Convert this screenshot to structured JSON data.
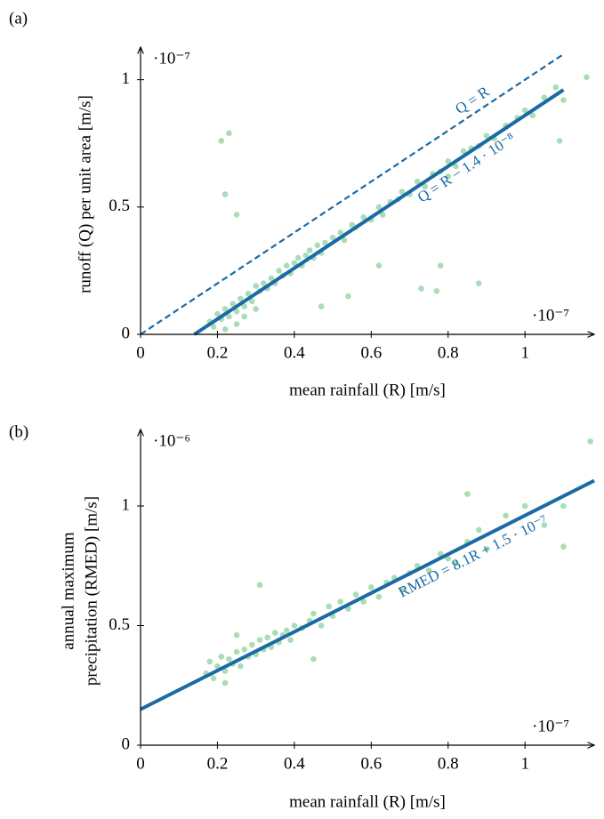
{
  "chart_data": [
    {
      "type": "scatter",
      "panel": "(a)",
      "xlabel": "mean rainfall (R) [m/s]",
      "ylabel": [
        "runoff (Q) per unit area [m/s]"
      ],
      "x_scale_label": "·10⁻⁷",
      "y_scale_label": "·10⁻⁷",
      "xlim": [
        0,
        1.18
      ],
      "ylim": [
        0,
        1.1
      ],
      "xticks": [
        0,
        0.2,
        0.4,
        0.6,
        0.8,
        1
      ],
      "yticks": [
        0,
        0.5,
        1
      ],
      "color": "#a8ddb5",
      "x": [
        0.18,
        0.19,
        0.2,
        0.21,
        0.22,
        0.22,
        0.23,
        0.24,
        0.25,
        0.25,
        0.26,
        0.27,
        0.27,
        0.28,
        0.29,
        0.3,
        0.3,
        0.31,
        0.32,
        0.33,
        0.34,
        0.35,
        0.36,
        0.37,
        0.38,
        0.39,
        0.4,
        0.41,
        0.42,
        0.43,
        0.44,
        0.45,
        0.46,
        0.47,
        0.48,
        0.5,
        0.52,
        0.53,
        0.55,
        0.56,
        0.58,
        0.6,
        0.62,
        0.63,
        0.65,
        0.67,
        0.68,
        0.7,
        0.72,
        0.74,
        0.76,
        0.78,
        0.8,
        0.82,
        0.84,
        0.86,
        0.88,
        0.9,
        0.92,
        0.95,
        0.98,
        1.0,
        1.02,
        1.05,
        1.08,
        1.1,
        0.23,
        0.21,
        0.22,
        0.25,
        0.77,
        0.88,
        0.73,
        0.78,
        0.62,
        1.09,
        1.16,
        0.54,
        0.47,
        0.8
      ],
      "y": [
        0.05,
        0.03,
        0.08,
        0.06,
        0.1,
        0.02,
        0.07,
        0.12,
        0.09,
        0.04,
        0.14,
        0.11,
        0.07,
        0.16,
        0.13,
        0.19,
        0.1,
        0.17,
        0.2,
        0.18,
        0.22,
        0.2,
        0.25,
        0.23,
        0.27,
        0.24,
        0.28,
        0.3,
        0.27,
        0.31,
        0.33,
        0.3,
        0.35,
        0.32,
        0.36,
        0.38,
        0.4,
        0.37,
        0.43,
        0.42,
        0.46,
        0.45,
        0.5,
        0.47,
        0.52,
        0.53,
        0.56,
        0.55,
        0.6,
        0.58,
        0.63,
        0.64,
        0.68,
        0.66,
        0.72,
        0.73,
        0.74,
        0.78,
        0.77,
        0.82,
        0.85,
        0.88,
        0.86,
        0.93,
        0.97,
        0.92,
        0.79,
        0.76,
        0.55,
        0.47,
        0.17,
        0.2,
        0.18,
        0.27,
        0.27,
        0.76,
        1.01,
        0.15,
        0.11,
        0.62
      ],
      "lines": [
        {
          "label": "Q = R",
          "x": [
            0,
            1.1
          ],
          "y": [
            0,
            1.1
          ],
          "dashed": true,
          "color": "#1a6aa6"
        },
        {
          "label": "Q = R − 1.4 · 10⁻⁸",
          "x": [
            0.14,
            1.1
          ],
          "y": [
            0,
            0.96
          ],
          "dashed": false,
          "color": "#1a6aa6"
        }
      ]
    },
    {
      "type": "scatter",
      "panel": "(b)",
      "xlabel": "mean rainfall (R) [m/s]",
      "ylabel": [
        "annual maximum",
        "precipitation (RMED) [m/s]"
      ],
      "x_scale_label": "·10⁻⁷",
      "y_scale_label": "·10⁻⁶",
      "xlim": [
        0,
        1.18
      ],
      "ylim": [
        0,
        1.29
      ],
      "xticks": [
        0,
        0.2,
        0.4,
        0.6,
        0.8,
        1
      ],
      "yticks": [
        0,
        0.5,
        1
      ],
      "color": "#a8ddb5",
      "x": [
        0.17,
        0.18,
        0.19,
        0.2,
        0.21,
        0.22,
        0.23,
        0.24,
        0.25,
        0.26,
        0.27,
        0.28,
        0.29,
        0.3,
        0.31,
        0.32,
        0.33,
        0.34,
        0.35,
        0.36,
        0.37,
        0.38,
        0.39,
        0.4,
        0.42,
        0.44,
        0.45,
        0.47,
        0.49,
        0.5,
        0.52,
        0.54,
        0.56,
        0.58,
        0.6,
        0.62,
        0.64,
        0.66,
        0.68,
        0.7,
        0.72,
        0.75,
        0.78,
        0.8,
        0.82,
        0.85,
        0.88,
        0.9,
        0.95,
        1.0,
        1.05,
        1.1,
        1.1,
        1.17,
        0.31,
        0.25,
        0.22,
        0.45,
        0.85
      ],
      "y": [
        0.3,
        0.35,
        0.28,
        0.33,
        0.37,
        0.31,
        0.36,
        0.34,
        0.39,
        0.33,
        0.4,
        0.37,
        0.42,
        0.38,
        0.44,
        0.4,
        0.45,
        0.41,
        0.47,
        0.43,
        0.46,
        0.48,
        0.44,
        0.5,
        0.49,
        0.52,
        0.55,
        0.5,
        0.58,
        0.54,
        0.6,
        0.57,
        0.63,
        0.6,
        0.66,
        0.62,
        0.68,
        0.7,
        0.65,
        0.72,
        0.75,
        0.73,
        0.8,
        0.78,
        0.76,
        0.85,
        0.9,
        0.82,
        0.96,
        1.0,
        0.92,
        1.0,
        0.83,
        1.27,
        0.67,
        0.46,
        0.26,
        0.36,
        1.05
      ],
      "lines": [
        {
          "label": "RMED = 8.1R + 1.5 · 10⁻⁷",
          "x": [
            0,
            1.18
          ],
          "y": [
            0.15,
            1.106
          ],
          "dashed": false,
          "color": "#1a6aa6"
        }
      ]
    }
  ]
}
